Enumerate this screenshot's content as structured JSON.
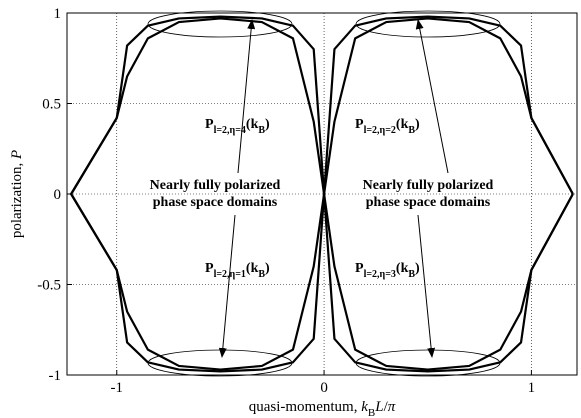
{
  "chart_data": {
    "type": "line",
    "x": [
      -1.22,
      -1,
      -0.95,
      -0.85,
      -0.7,
      -0.5,
      -0.3,
      -0.15,
      -0.05,
      0,
      0.05,
      0.15,
      0.3,
      0.5,
      0.7,
      0.85,
      0.95,
      1,
      1.2
    ],
    "series": [
      {
        "color": "#000000",
        "values": [
          0,
          0.42,
          0.65,
          0.86,
          0.95,
          0.97,
          0.95,
          0.86,
          0.4,
          0,
          -0.4,
          -0.86,
          -0.95,
          -0.97,
          -0.95,
          -0.86,
          -0.65,
          -0.42,
          0
        ]
      },
      {
        "color": "#000000",
        "values": [
          0,
          -0.42,
          -0.65,
          -0.86,
          -0.95,
          -0.97,
          -0.95,
          -0.86,
          -0.4,
          0,
          0.4,
          0.86,
          0.95,
          0.97,
          0.95,
          0.86,
          0.65,
          0.42,
          0
        ]
      },
      {
        "color": "#000000",
        "values": [
          0,
          0.42,
          0.82,
          0.93,
          0.97,
          0.98,
          0.97,
          0.93,
          0.8,
          0,
          -0.8,
          -0.93,
          -0.97,
          -0.98,
          -0.97,
          -0.93,
          -0.82,
          -0.42,
          0
        ]
      },
      {
        "color": "#000000",
        "values": [
          0,
          -0.42,
          -0.82,
          -0.93,
          -0.97,
          -0.98,
          -0.97,
          -0.93,
          -0.8,
          0,
          0.8,
          0.93,
          0.97,
          0.98,
          0.97,
          0.93,
          0.82,
          0.42,
          0
        ]
      }
    ],
    "xlim": [
      -1.24,
      1.22
    ],
    "ylim": [
      -1,
      1
    ],
    "xticks": [
      -1,
      0,
      1
    ],
    "yticks": [
      1,
      0.5,
      0,
      -0.5,
      -1
    ],
    "grid": true,
    "xlabel": [
      {
        "text": "quasi-momentum, "
      },
      {
        "text": "k",
        "italic": true
      },
      {
        "text": "B",
        "sub": true
      },
      {
        "text": "L",
        "italic": true
      },
      {
        "text": "/"
      },
      {
        "text": "π",
        "italic": true
      }
    ],
    "ylabel": [
      {
        "text": "polarization, "
      },
      {
        "text": "P",
        "italic": true
      }
    ],
    "annotations": [
      [
        {
          "text": "P"
        },
        {
          "text": "l=2,η=4",
          "sub": true
        },
        {
          "text": "(k"
        },
        {
          "text": "B",
          "sub": true
        },
        {
          "text": ")"
        }
      ],
      [
        {
          "text": "P"
        },
        {
          "text": "l=2,η=2",
          "sub": true
        },
        {
          "text": "(k"
        },
        {
          "text": "B",
          "sub": true
        },
        {
          "text": ")"
        }
      ],
      [
        {
          "text": "P"
        },
        {
          "text": "l=2,η=1",
          "sub": true
        },
        {
          "text": "(k"
        },
        {
          "text": "B",
          "sub": true
        },
        {
          "text": ")"
        }
      ],
      [
        {
          "text": "P"
        },
        {
          "text": "l=2,η=3",
          "sub": true
        },
        {
          "text": "(k"
        },
        {
          "text": "B",
          "sub": true
        },
        {
          "text": ")"
        }
      ]
    ],
    "domain_labels": [
      [
        "Nearly fully polarized",
        "phase space domains"
      ],
      [
        "Nearly fully polarized",
        "phase space domains"
      ]
    ]
  }
}
